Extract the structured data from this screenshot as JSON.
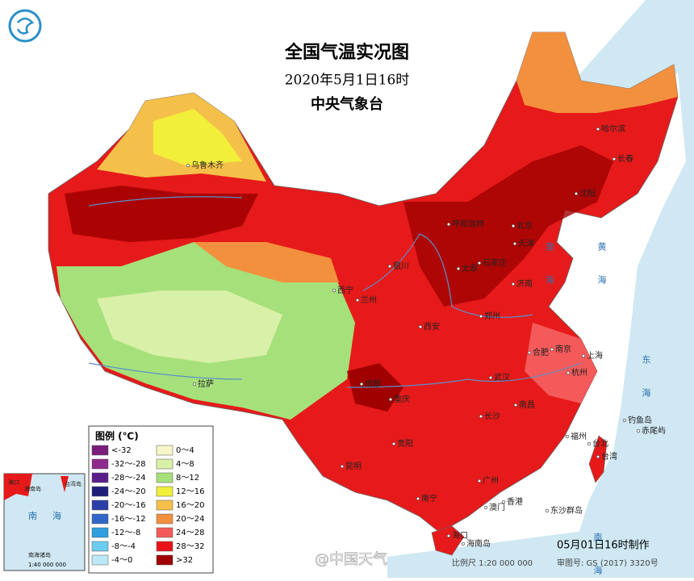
{
  "header": {
    "title": "全国气温实况图",
    "date": "2020年5月1日16时",
    "issuer": "中央气象台"
  },
  "legend": {
    "title": "图例 (℃)",
    "items": [
      {
        "label": "<-32",
        "color": "#7a1c7d"
      },
      {
        "label": "-32～-28",
        "color": "#8e2a8e"
      },
      {
        "label": "-28～-24",
        "color": "#5a1d8a"
      },
      {
        "label": "-24～-20",
        "color": "#1f1f7a"
      },
      {
        "label": "-20～-16",
        "color": "#2a3fa8"
      },
      {
        "label": "-16～-12",
        "color": "#2f66c8"
      },
      {
        "label": "-12～-8",
        "color": "#2f9fe0"
      },
      {
        "label": "-8～-4",
        "color": "#6ccdf0"
      },
      {
        "label": "-4～0",
        "color": "#bde8f7"
      },
      {
        "label": "0～4",
        "color": "#f6f6c8"
      },
      {
        "label": "4～8",
        "color": "#d9f0a8"
      },
      {
        "label": "8～12",
        "color": "#a6e07a"
      },
      {
        "label": "12～16",
        "color": "#f2ef3a"
      },
      {
        "label": "16～20",
        "color": "#f5c04a"
      },
      {
        "label": "20～24",
        "color": "#f3903e"
      },
      {
        "label": "24～28",
        "color": "#f45a5a"
      },
      {
        "label": "28～32",
        "color": "#e8141a"
      },
      {
        "label": ">32",
        "color": "#a00000"
      }
    ]
  },
  "cities": [
    "乌鲁木齐",
    "哈尔滨",
    "长春",
    "沈阳",
    "呼和浩特",
    "北京",
    "天津",
    "石家庄",
    "太原",
    "济南",
    "银川",
    "西宁",
    "兰州",
    "郑州",
    "西安",
    "合肥",
    "南京",
    "上海",
    "武汉",
    "杭州",
    "拉萨",
    "成都",
    "重庆",
    "长沙",
    "南昌",
    "福州",
    "台北",
    "贵阳",
    "昆明",
    "南宁",
    "广州",
    "澳门",
    "香港",
    "海口",
    "台湾",
    "钓鱼岛",
    "赤尾屿",
    "东沙群岛",
    "海南岛"
  ],
  "seas": [
    "渤海",
    "黄海",
    "东海",
    "南海"
  ],
  "inset": {
    "labels": [
      "海口",
      "海南岛",
      "台湾岛",
      "南",
      "海",
      "南海诸岛"
    ],
    "scale": "1:40 000 000"
  },
  "footer": {
    "made": "05月01日16时制作",
    "scale": "比例尺 1:20 000 000",
    "review": "审图号: GS (2017) 3320号",
    "watermark": "@中国天气"
  }
}
